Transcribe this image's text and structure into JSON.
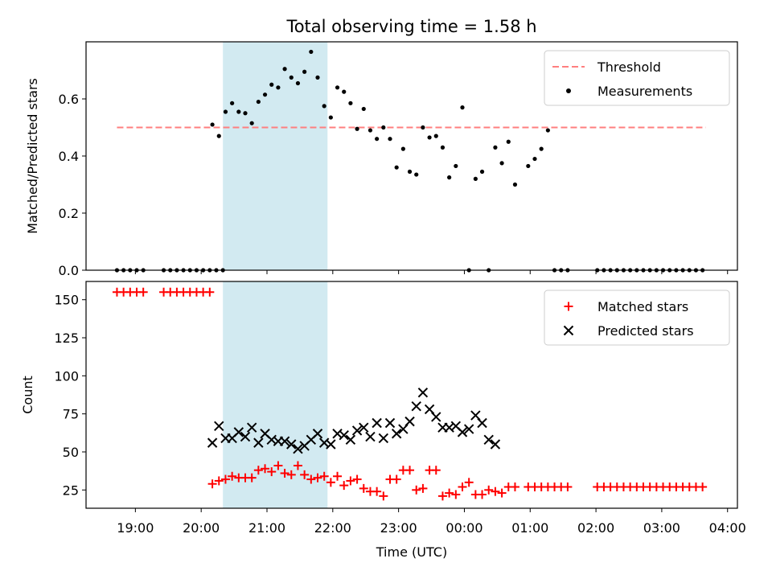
{
  "title": "Total observing time = 1.58 h",
  "colors": {
    "threshold": "#ff7f7f",
    "measurement": "#000000",
    "matched": "#ff0000",
    "predicted": "#000000",
    "observing_window": "#add8e6"
  },
  "chart_data": [
    {
      "type": "scatter",
      "panel": "top",
      "title": "Total observing time = 1.58 h",
      "ylabel": "Matched/Predicted stars",
      "xlabel": "",
      "ylim": [
        0,
        0.8
      ],
      "yticks": [
        0.0,
        0.2,
        0.4,
        0.6
      ],
      "ytick_labels": [
        "0.0",
        "0.2",
        "0.4",
        "0.6"
      ],
      "xlim_hours": [
        18.25,
        28.15
      ],
      "xticks_hours": [
        19,
        20,
        21,
        22,
        23,
        24,
        25,
        26,
        27,
        28
      ],
      "shaded_span_hours": [
        20.33,
        21.92
      ],
      "legend_position": "upper right",
      "legend": [
        "Threshold",
        "Measurements"
      ],
      "threshold": {
        "name": "Threshold",
        "y": 0.5,
        "x_range_hours": [
          18.72,
          27.67
        ],
        "style": "dashed"
      },
      "series": [
        {
          "name": "Measurements",
          "marker": "dot",
          "x_hours": [
            18.72,
            18.82,
            18.92,
            19.02,
            19.12,
            19.43,
            19.53,
            19.63,
            19.73,
            19.83,
            19.93,
            20.03,
            20.13,
            20.23,
            20.33,
            20.17,
            20.27,
            20.37,
            20.47,
            20.57,
            20.67,
            20.77,
            20.87,
            20.97,
            21.07,
            21.17,
            21.27,
            21.37,
            21.47,
            21.57,
            21.67,
            21.77,
            21.87,
            21.97,
            22.07,
            22.17,
            22.27,
            22.37,
            22.47,
            22.57,
            22.67,
            22.77,
            22.87,
            22.97,
            23.07,
            23.17,
            23.27,
            23.37,
            23.47,
            23.57,
            23.67,
            23.77,
            23.87,
            23.97,
            24.07,
            24.17,
            24.27,
            24.37,
            24.47,
            24.57,
            24.67,
            24.77,
            24.97,
            25.07,
            25.17,
            25.27,
            25.37,
            25.47,
            25.57,
            26.02,
            26.12,
            26.22,
            26.32,
            26.42,
            26.52,
            26.62,
            26.72,
            26.82,
            26.92,
            27.02,
            27.12,
            27.22,
            27.32,
            27.42,
            27.52,
            27.62
          ],
          "y": [
            0,
            0,
            0,
            0,
            0,
            0,
            0,
            0,
            0,
            0,
            0,
            0,
            0,
            0,
            0,
            0.51,
            0.47,
            0.555,
            0.585,
            0.555,
            0.55,
            0.515,
            0.59,
            0.615,
            0.65,
            0.64,
            0.705,
            0.675,
            0.655,
            0.695,
            0.765,
            0.675,
            0.575,
            0.535,
            0.64,
            0.625,
            0.585,
            0.495,
            0.565,
            0.49,
            0.46,
            0.5,
            0.46,
            0.36,
            0.425,
            0.345,
            0.335,
            0.5,
            0.465,
            0.47,
            0.43,
            0.325,
            0.365,
            0.57,
            0,
            0.32,
            0.345,
            0,
            0.43,
            0.375,
            0.45,
            0.3,
            0.365,
            0.39,
            0.425,
            0.49,
            0,
            0,
            0,
            0,
            0,
            0,
            0,
            0,
            0,
            0,
            0,
            0,
            0,
            0,
            0,
            0,
            0,
            0,
            0,
            0
          ]
        }
      ]
    },
    {
      "type": "scatter",
      "panel": "bottom",
      "xlabel": "Time (UTC)",
      "ylabel": "Count",
      "ylim": [
        13,
        162
      ],
      "yticks": [
        25,
        50,
        75,
        100,
        125,
        150
      ],
      "ytick_labels": [
        "25",
        "50",
        "75",
        "100",
        "125",
        "150"
      ],
      "xlim_hours": [
        18.25,
        28.15
      ],
      "xticks_hours": [
        19,
        20,
        21,
        22,
        23,
        24,
        25,
        26,
        27,
        28
      ],
      "xtick_labels": [
        "19:00",
        "20:00",
        "21:00",
        "22:00",
        "23:00",
        "00:00",
        "01:00",
        "02:00",
        "03:00",
        "04:00"
      ],
      "shaded_span_hours": [
        20.33,
        21.92
      ],
      "legend_position": "upper right",
      "legend": [
        "Matched stars",
        "Predicted stars"
      ],
      "series": [
        {
          "name": "Matched stars",
          "marker": "plus",
          "x_hours": [
            18.72,
            18.82,
            18.92,
            19.02,
            19.12,
            19.43,
            19.53,
            19.63,
            19.73,
            19.83,
            19.93,
            20.03,
            20.13,
            20.17,
            20.27,
            20.37,
            20.47,
            20.57,
            20.67,
            20.77,
            20.87,
            20.97,
            21.07,
            21.17,
            21.27,
            21.37,
            21.47,
            21.57,
            21.67,
            21.77,
            21.87,
            21.97,
            22.07,
            22.17,
            22.27,
            22.37,
            22.47,
            22.57,
            22.67,
            22.77,
            22.87,
            22.97,
            23.07,
            23.17,
            23.27,
            23.37,
            23.47,
            23.57,
            23.67,
            23.77,
            23.87,
            23.97,
            24.07,
            24.17,
            24.27,
            24.37,
            24.47,
            24.57,
            24.67,
            24.77,
            24.97,
            25.07,
            25.17,
            25.27,
            25.37,
            25.47,
            25.57,
            26.02,
            26.12,
            26.22,
            26.32,
            26.42,
            26.52,
            26.62,
            26.72,
            26.82,
            26.92,
            27.02,
            27.12,
            27.22,
            27.32,
            27.42,
            27.52,
            27.62
          ],
          "y": [
            155,
            155,
            155,
            155,
            155,
            155,
            155,
            155,
            155,
            155,
            155,
            155,
            155,
            29,
            31,
            32,
            34,
            33,
            33,
            33,
            38,
            39,
            37,
            41,
            36,
            35,
            41,
            35,
            32,
            33,
            34,
            30,
            34,
            28,
            31,
            32,
            26,
            24,
            24,
            21,
            32,
            32,
            38,
            38,
            25,
            26,
            38,
            38,
            21,
            23,
            22,
            27,
            30,
            22,
            22,
            25,
            24,
            23,
            27,
            27,
            27,
            27,
            27,
            27,
            27,
            27,
            27,
            27,
            27,
            27,
            27,
            27,
            27,
            27,
            27,
            27,
            27,
            27,
            27,
            27,
            27,
            27,
            27,
            27
          ]
        },
        {
          "name": "Predicted stars",
          "marker": "x",
          "x_hours": [
            20.17,
            20.27,
            20.37,
            20.47,
            20.57,
            20.67,
            20.77,
            20.87,
            20.97,
            21.07,
            21.17,
            21.27,
            21.37,
            21.47,
            21.57,
            21.67,
            21.77,
            21.87,
            21.97,
            22.07,
            22.17,
            22.27,
            22.37,
            22.47,
            22.57,
            22.67,
            22.77,
            22.87,
            22.97,
            23.07,
            23.17,
            23.27,
            23.37,
            23.47,
            23.57,
            23.67,
            23.77,
            23.87,
            23.97,
            24.07,
            24.17,
            24.27,
            24.37,
            24.47
          ],
          "y": [
            56,
            67,
            59,
            59,
            63,
            60,
            66,
            56,
            62,
            58,
            57,
            57,
            55,
            52,
            54,
            58,
            62,
            56,
            55,
            62,
            61,
            58,
            64,
            66,
            60,
            69,
            59,
            69,
            62,
            65,
            70,
            80,
            89,
            78,
            73,
            66,
            66,
            67,
            63,
            65,
            74,
            69,
            58,
            55
          ]
        }
      ]
    }
  ]
}
